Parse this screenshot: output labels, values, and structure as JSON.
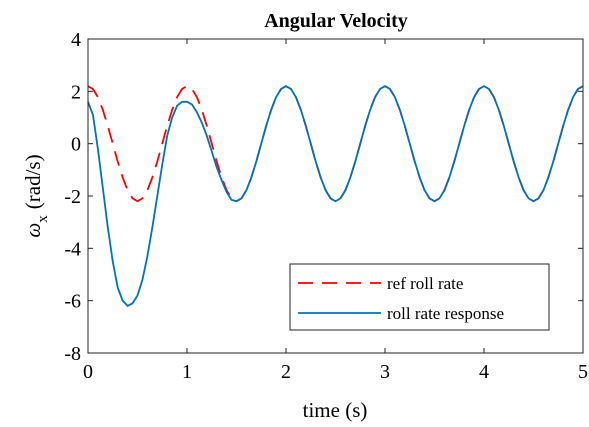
{
  "chart_data": {
    "type": "line",
    "title": "Angular Velocity",
    "xlabel": "time (s)",
    "ylabel": {
      "symbol": "ω",
      "subscript": "x",
      "unit": "(rad/s)"
    },
    "xlim": [
      0,
      5
    ],
    "ylim": [
      -8,
      4
    ],
    "xticks": [
      0,
      1,
      2,
      3,
      4,
      5
    ],
    "yticks": [
      -8,
      -6,
      -4,
      -2,
      0,
      2,
      4
    ],
    "grid": false,
    "legend_position": "bottom-right",
    "series": [
      {
        "name": "ref roll rate",
        "color": "#ff0000",
        "style": "dashed",
        "x": [
          0,
          0.05,
          0.1,
          0.15,
          0.2,
          0.25,
          0.3,
          0.35,
          0.4,
          0.45,
          0.5,
          0.55,
          0.6,
          0.65,
          0.7,
          0.75,
          0.8,
          0.85,
          0.9,
          0.95,
          1.0,
          1.05,
          1.1,
          1.15,
          1.2,
          1.25,
          1.3,
          1.35,
          1.4,
          1.45,
          1.5,
          1.55,
          1.6,
          1.65,
          1.7,
          1.75,
          1.8,
          1.85,
          1.9,
          1.95,
          2.0,
          2.05,
          2.1,
          2.15,
          2.2,
          2.25,
          2.3,
          2.35,
          2.4,
          2.45,
          2.5,
          2.55,
          2.6,
          2.65,
          2.7,
          2.75,
          2.8,
          2.85,
          2.9,
          2.95,
          3.0,
          3.05,
          3.1,
          3.15,
          3.2,
          3.25,
          3.3,
          3.35,
          3.4,
          3.45,
          3.5,
          3.55,
          3.6,
          3.65,
          3.7,
          3.75,
          3.8,
          3.85,
          3.9,
          3.95,
          4.0,
          4.05,
          4.1,
          4.15,
          4.2,
          4.25,
          4.3,
          4.35,
          4.4,
          4.45,
          4.5,
          4.55,
          4.6,
          4.65,
          4.7,
          4.75,
          4.8,
          4.85,
          4.9,
          4.95,
          5.0
        ],
        "y": [
          2.2,
          2.09,
          1.78,
          1.29,
          0.68,
          0,
          -0.68,
          -1.29,
          -1.78,
          -2.09,
          -2.2,
          -2.09,
          -1.78,
          -1.29,
          -0.68,
          0,
          0.68,
          1.29,
          1.78,
          2.09,
          2.2,
          2.09,
          1.78,
          1.29,
          0.68,
          0,
          -0.68,
          -1.29,
          -1.78,
          -2.09,
          -2.2,
          -2.09,
          -1.78,
          -1.29,
          -0.68,
          0,
          0.68,
          1.29,
          1.78,
          2.09,
          2.2,
          2.09,
          1.78,
          1.29,
          0.68,
          0,
          -0.68,
          -1.29,
          -1.78,
          -2.09,
          -2.2,
          -2.09,
          -1.78,
          -1.29,
          -0.68,
          0,
          0.68,
          1.29,
          1.78,
          2.09,
          2.2,
          2.09,
          1.78,
          1.29,
          0.68,
          0,
          -0.68,
          -1.29,
          -1.78,
          -2.09,
          -2.2,
          -2.09,
          -1.78,
          -1.29,
          -0.68,
          0,
          0.68,
          1.29,
          1.78,
          2.09,
          2.2,
          2.09,
          1.78,
          1.29,
          0.68,
          0,
          -0.68,
          -1.29,
          -1.78,
          -2.09,
          -2.2,
          -2.09,
          -1.78,
          -1.29,
          -0.68,
          0,
          0.68,
          1.29,
          1.78,
          2.09,
          2.2
        ]
      },
      {
        "name": "roll rate response",
        "color": "#0072bd",
        "style": "solid",
        "x": [
          0,
          0.05,
          0.1,
          0.15,
          0.2,
          0.25,
          0.3,
          0.35,
          0.4,
          0.45,
          0.5,
          0.55,
          0.6,
          0.65,
          0.7,
          0.75,
          0.8,
          0.85,
          0.9,
          0.95,
          1.0,
          1.05,
          1.1,
          1.15,
          1.2,
          1.25,
          1.3,
          1.35,
          1.4,
          1.45,
          1.5,
          1.55,
          1.6,
          1.65,
          1.7,
          1.75,
          1.8,
          1.85,
          1.9,
          1.95,
          2.0,
          2.05,
          2.1,
          2.15,
          2.2,
          2.25,
          2.3,
          2.35,
          2.4,
          2.45,
          2.5,
          2.55,
          2.6,
          2.65,
          2.7,
          2.75,
          2.8,
          2.85,
          2.9,
          2.95,
          3.0,
          3.05,
          3.1,
          3.15,
          3.2,
          3.25,
          3.3,
          3.35,
          3.4,
          3.45,
          3.5,
          3.55,
          3.6,
          3.65,
          3.7,
          3.75,
          3.8,
          3.85,
          3.9,
          3.95,
          4.0,
          4.05,
          4.1,
          4.15,
          4.2,
          4.25,
          4.3,
          4.35,
          4.4,
          4.45,
          4.5,
          4.55,
          4.6,
          4.65,
          4.7,
          4.75,
          4.8,
          4.85,
          4.9,
          4.95,
          5.0
        ],
        "y": [
          1.6,
          1.1,
          -0.2,
          -1.7,
          -3.2,
          -4.5,
          -5.5,
          -6.0,
          -6.2,
          -6.1,
          -5.8,
          -5.2,
          -4.3,
          -3.2,
          -2.0,
          -0.8,
          0.3,
          1.0,
          1.45,
          1.6,
          1.6,
          1.5,
          1.2,
          0.8,
          0.3,
          -0.3,
          -0.9,
          -1.4,
          -1.85,
          -2.15,
          -2.2,
          -2.09,
          -1.78,
          -1.29,
          -0.68,
          0,
          0.68,
          1.29,
          1.78,
          2.09,
          2.2,
          2.09,
          1.78,
          1.29,
          0.68,
          0,
          -0.68,
          -1.29,
          -1.78,
          -2.09,
          -2.2,
          -2.09,
          -1.78,
          -1.29,
          -0.68,
          0,
          0.68,
          1.29,
          1.78,
          2.09,
          2.2,
          2.09,
          1.78,
          1.29,
          0.68,
          0,
          -0.68,
          -1.29,
          -1.78,
          -2.09,
          -2.2,
          -2.09,
          -1.78,
          -1.29,
          -0.68,
          0,
          0.68,
          1.29,
          1.78,
          2.09,
          2.2,
          2.09,
          1.78,
          1.29,
          0.68,
          0,
          -0.68,
          -1.29,
          -1.78,
          -2.09,
          -2.2,
          -2.09,
          -1.78,
          -1.29,
          -0.68,
          0,
          0.68,
          1.29,
          1.78,
          2.09,
          2.2
        ]
      }
    ]
  }
}
